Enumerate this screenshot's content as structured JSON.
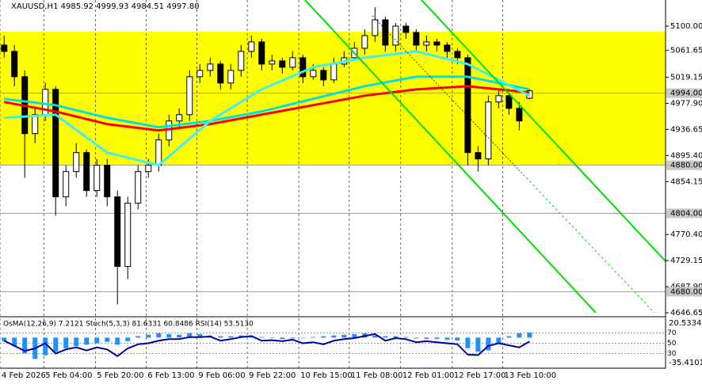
{
  "chart_data": [
    {
      "type": "candlestick",
      "title": "XAUUSD,H1  4985.92 4999.93 4984.51 4997.80",
      "open": [
        5070,
        5060,
        5020,
        4930,
        4960,
        5000,
        4830,
        4870,
        4900,
        4840,
        4880,
        4830,
        4720,
        4820,
        4870,
        4880,
        4920,
        4950,
        4960,
        5020,
        5030,
        5040,
        5010,
        5030,
        5060,
        5075,
        5040,
        5045,
        5035,
        5050,
        5020,
        5030,
        5015,
        5040,
        5050,
        5065,
        5085,
        5110,
        5070,
        5100,
        5090,
        5070,
        5075,
        5070,
        5060,
        5050,
        4900,
        4890,
        4980,
        4990,
        4970,
        4985.92
      ],
      "high": [
        5085,
        5070,
        5030,
        4970,
        5010,
        5005,
        4880,
        4915,
        4905,
        4890,
        4890,
        4840,
        4830,
        4880,
        4890,
        4930,
        4960,
        4970,
        5030,
        5040,
        5050,
        5045,
        5040,
        5070,
        5085,
        5080,
        5055,
        5050,
        5060,
        5055,
        5040,
        5035,
        5050,
        5060,
        5075,
        5095,
        5130,
        5115,
        5105,
        5105,
        5095,
        5085,
        5080,
        5075,
        5065,
        5055,
        4910,
        4990,
        5000,
        4995,
        4980,
        4999.93
      ],
      "low": [
        5050,
        5005,
        4860,
        4915,
        4950,
        4800,
        4815,
        4860,
        4830,
        4830,
        4815,
        4660,
        4700,
        4810,
        4860,
        4870,
        4910,
        4940,
        4950,
        5010,
        5020,
        5000,
        5000,
        5020,
        5050,
        5030,
        5030,
        5025,
        5030,
        5010,
        5015,
        5005,
        5010,
        5035,
        5045,
        5055,
        5075,
        5060,
        5060,
        5080,
        5060,
        5060,
        5060,
        5050,
        5040,
        4880,
        4870,
        4880,
        4970,
        4960,
        4935,
        4984.51
      ],
      "close": [
        5060,
        5020,
        4930,
        4960,
        5000,
        4830,
        4870,
        4900,
        4840,
        4880,
        4830,
        4720,
        4820,
        4870,
        4880,
        4920,
        4950,
        4960,
        5020,
        5030,
        5040,
        5010,
        5030,
        5060,
        5075,
        5040,
        5045,
        5035,
        5050,
        5020,
        5030,
        5015,
        5040,
        5050,
        5065,
        5085,
        5110,
        5070,
        5100,
        5090,
        5070,
        5075,
        5070,
        5060,
        5050,
        4900,
        4890,
        4980,
        4990,
        4970,
        4950,
        4997.8
      ],
      "up_color": "#ffffff",
      "down_color": "#000000",
      "xlim": [
        -0.4,
        64.2
      ],
      "xticks": [
        {
          "value": -0.4,
          "label": "4 Feb 2026"
        },
        {
          "value": 3.85,
          "label": "5 Feb 04:00"
        },
        {
          "value": 8.85,
          "label": "5 Feb 20:00"
        },
        {
          "value": 13.77,
          "label": "6 Feb 13:00"
        },
        {
          "value": 18.7,
          "label": "9 Feb 06:00"
        },
        {
          "value": 23.6,
          "label": "9 Feb 22:00"
        },
        {
          "value": 28.6,
          "label": "10 Feb 15:00"
        },
        {
          "value": 33.5,
          "label": "11 Feb 08:00"
        },
        {
          "value": 38.5,
          "label": "12 Feb 01:00"
        },
        {
          "value": 43.5,
          "label": "12 Feb 17:00"
        },
        {
          "value": 48.4,
          "label": "13 Feb 10:00"
        }
      ],
      "ylim": [
        4640.4,
        5141.3
      ],
      "yticks": [
        {
          "value": 5100,
          "label": "5100.00"
        },
        5061.65,
        5019.15,
        {
          "value": 4977.9,
          "label": "4977.90"
        },
        4936.65,
        {
          "value": 4895.4,
          "label": "4895.40"
        },
        4854.15,
        {
          "value": 4770.4,
          "label": "4770.40"
        },
        4729.15,
        {
          "value": 4687.9,
          "label": "4687.90"
        },
        4646.65
      ],
      "zone": [
        4880,
        5091
      ],
      "zone_color": "#ffff00",
      "levels": [
        {
          "value": 4994,
          "label": "4994.00"
        },
        {
          "value": 4880,
          "label": "4880.00"
        },
        {
          "value": 4804,
          "label": "4804.00"
        },
        {
          "value": 4680,
          "label": "4680.00"
        }
      ],
      "lines": [
        {
          "color": "#ff0000",
          "x": [
            0,
            5,
            10,
            15,
            20,
            25,
            30,
            35,
            40,
            45,
            51
          ],
          "values": [
            4980,
            4965,
            4945,
            4935,
            4945,
            4960,
            4975,
            4990,
            5000,
            5005,
            4995
          ]
        },
        {
          "color": "#00e0e0",
          "x": [
            0,
            5,
            10,
            15,
            20,
            25,
            30,
            35,
            40,
            45,
            51
          ],
          "values": [
            4985,
            4975,
            4955,
            4940,
            4950,
            4965,
            4985,
            5005,
            5020,
            5020,
            5000
          ]
        },
        {
          "color": "#40f0f0",
          "x": [
            0,
            5,
            10,
            15,
            20,
            25,
            30,
            35,
            40,
            45,
            51
          ],
          "values": [
            4955,
            4960,
            4900,
            4880,
            4950,
            5000,
            5035,
            5050,
            5060,
            5040,
            4990
          ]
        }
      ]
    },
    {
      "type": "oscillator",
      "title": "OsMA(12,26,9) 7.2121 Stoch(5,3,3) 81.6331 60.8486 RSI(14) 53.5130",
      "ylim": [
        -35.4101,
        20.5334
      ],
      "yticks": [
        20.5334,
        -35.4101
      ],
      "y2lim": [
        0,
        100
      ],
      "y2ticks": [
        30,
        50,
        70
      ],
      "series": [
        {
          "color": "#1e90ff",
          "values": [
            -5,
            -12,
            -22,
            -30,
            -25,
            -20,
            -15,
            -12,
            -10,
            -8,
            -6,
            -10,
            -5,
            2,
            4,
            6,
            5,
            4,
            6,
            5,
            3,
            2,
            2,
            3,
            2,
            1,
            0,
            -2,
            -1,
            0,
            1,
            2,
            3,
            4,
            5,
            6,
            3,
            2,
            2,
            1,
            -1,
            -2,
            -2,
            -3,
            -4,
            -15,
            -20,
            -18,
            -8,
            2,
            6,
            7.2121
          ]
        },
        {
          "color": "#0000a0",
          "axis": "y2",
          "values": [
            55,
            45,
            35,
            40,
            50,
            30,
            38,
            42,
            36,
            42,
            38,
            25,
            40,
            48,
            50,
            55,
            58,
            58,
            62,
            62,
            63,
            55,
            58,
            62,
            64,
            55,
            56,
            54,
            57,
            50,
            52,
            48,
            55,
            58,
            60,
            64,
            68,
            55,
            60,
            58,
            52,
            54,
            52,
            50,
            48,
            28,
            27,
            45,
            50,
            46,
            42,
            53.513
          ]
        }
      ]
    }
  ]
}
